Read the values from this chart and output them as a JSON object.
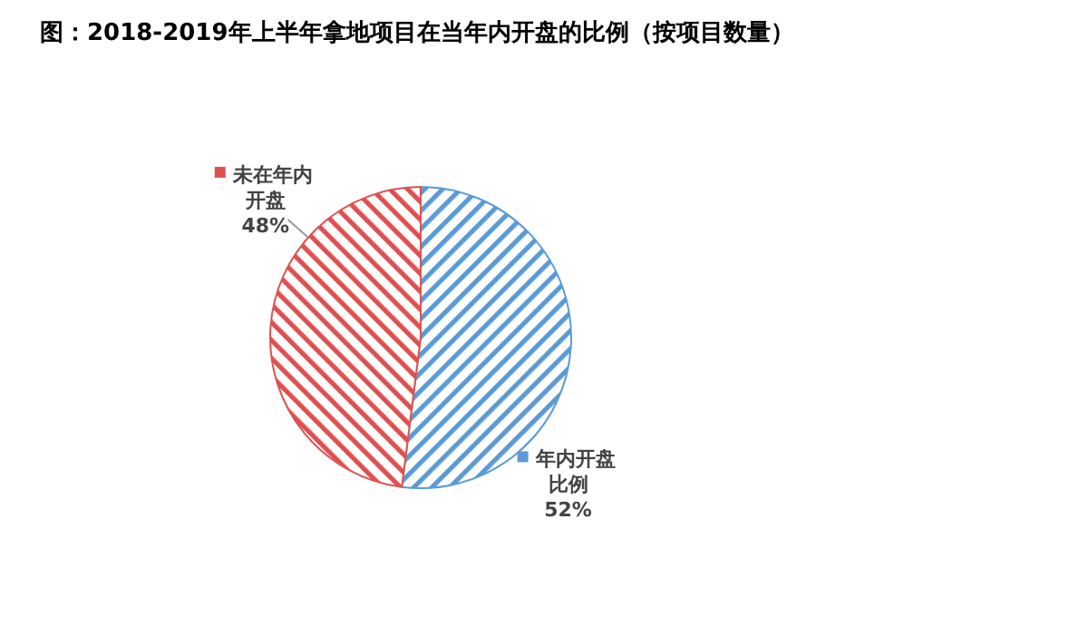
{
  "chart_data": {
    "type": "pie",
    "title": "图：2018-2019年上半年拿地项目在当年内开盘的比例（按项目数量）",
    "categories": [
      "年内开盘比例",
      "未在年内开盘"
    ],
    "values": [
      52,
      48
    ],
    "colors": [
      "#5b9bd5",
      "#e05050"
    ],
    "value_labels": [
      "52%",
      "48%"
    ]
  }
}
